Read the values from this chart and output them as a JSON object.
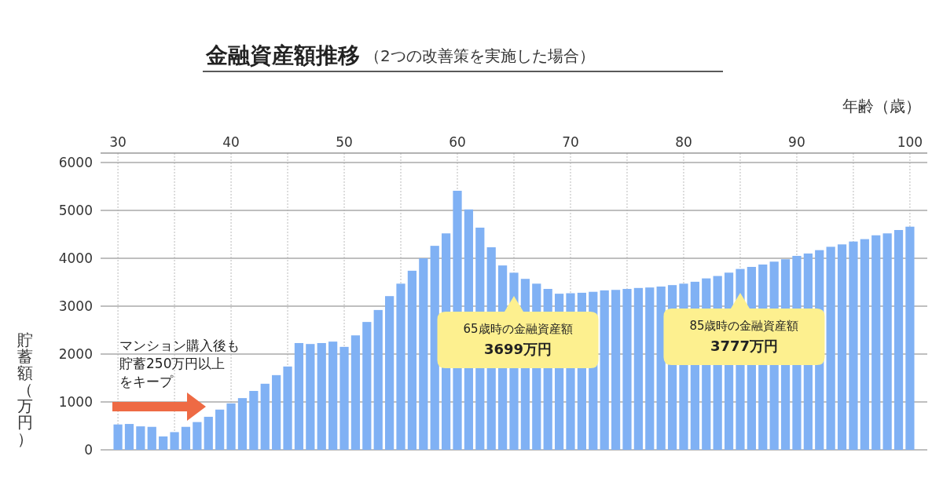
{
  "chart_data": {
    "type": "bar",
    "title": "金融資産額推移",
    "subtitle": "（2つの改善策を実施した場合）",
    "xlabel": "年齢（歳）",
    "ylabel": "貯蓄額（万円）",
    "x": [
      30,
      31,
      32,
      33,
      34,
      35,
      36,
      37,
      38,
      39,
      40,
      41,
      42,
      43,
      44,
      45,
      46,
      47,
      48,
      49,
      50,
      51,
      52,
      53,
      54,
      55,
      56,
      57,
      58,
      59,
      60,
      61,
      62,
      63,
      64,
      65,
      66,
      67,
      68,
      69,
      70,
      71,
      72,
      73,
      74,
      75,
      76,
      77,
      78,
      79,
      80,
      81,
      82,
      83,
      84,
      85,
      86,
      87,
      88,
      89,
      90,
      91,
      92,
      93,
      94,
      95,
      96,
      97,
      98,
      99,
      100
    ],
    "values": [
      530,
      540,
      490,
      480,
      280,
      370,
      480,
      580,
      690,
      840,
      970,
      1080,
      1230,
      1380,
      1560,
      1740,
      2230,
      2210,
      2230,
      2260,
      2150,
      2390,
      2670,
      2920,
      3210,
      3470,
      3740,
      4000,
      4260,
      4520,
      5410,
      5020,
      4640,
      4230,
      3850,
      3699,
      3570,
      3470,
      3360,
      3260,
      3270,
      3280,
      3300,
      3330,
      3340,
      3360,
      3380,
      3390,
      3410,
      3440,
      3470,
      3510,
      3580,
      3630,
      3700,
      3777,
      3820,
      3870,
      3930,
      3980,
      4050,
      4100,
      4170,
      4240,
      4290,
      4350,
      4400,
      4480,
      4520,
      4590,
      4660
    ],
    "color": "#80b1f4",
    "xlim": [
      29.3,
      100.7
    ],
    "xticks": [
      30,
      40,
      50,
      60,
      70,
      80,
      90,
      100
    ],
    "ylim": [
      0,
      6000
    ],
    "yticks": [
      0,
      1000,
      2000,
      3000,
      4000,
      5000,
      6000
    ],
    "grid": true,
    "annotations": [
      "65歳時の金融資産額3699万円",
      "85歳時の金融資産額3777万円",
      "マンション購入後も貯蓄250万円以上をキープ"
    ]
  }
}
